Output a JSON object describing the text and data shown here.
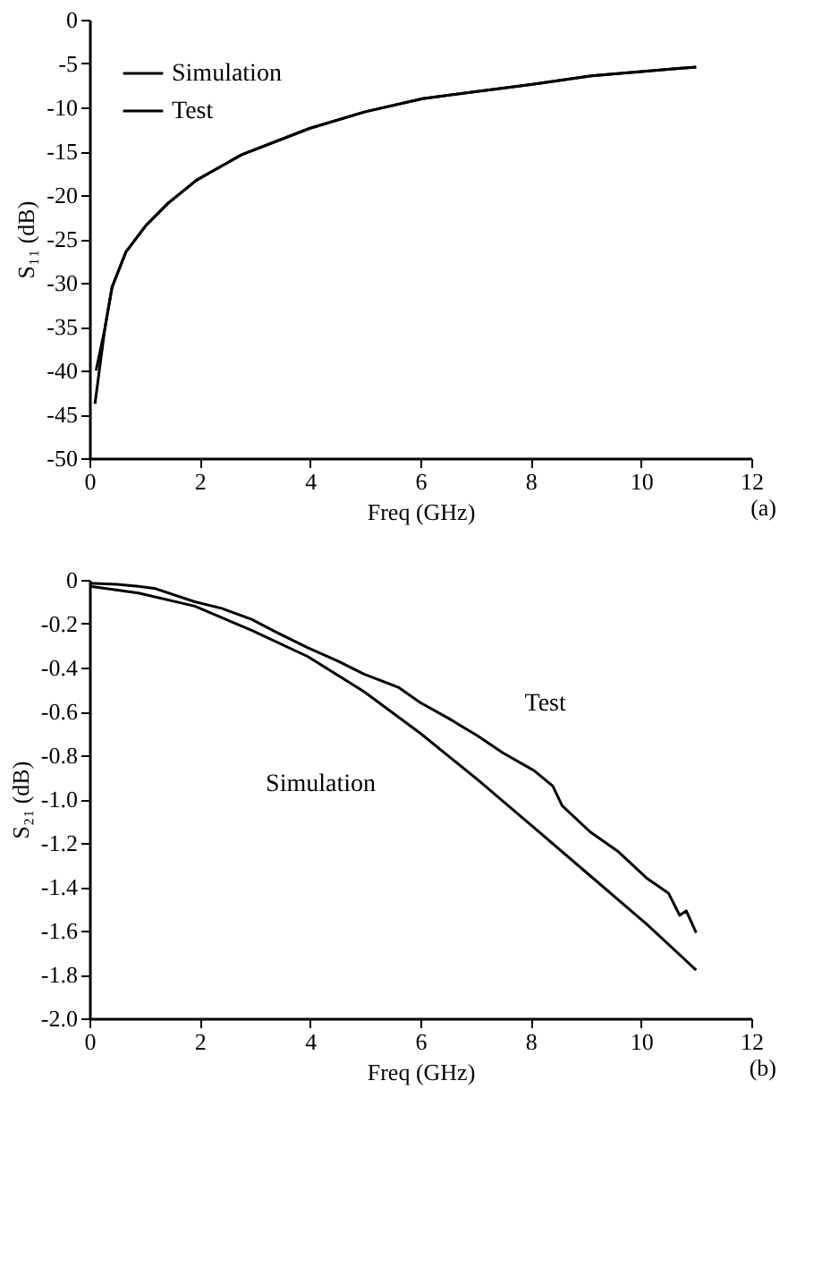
{
  "chart_data": [
    {
      "type": "line",
      "xlabel": "Freq (GHz)",
      "ylabel": "S₁₁ (dB)",
      "xlim": [
        0,
        12
      ],
      "ylim": [
        -50,
        0
      ],
      "xticks": [
        0,
        2,
        4,
        6,
        8,
        10,
        12
      ],
      "yticks": [
        -50,
        -45,
        -40,
        -35,
        -30,
        -25,
        -20,
        -15,
        -10,
        -5,
        0
      ],
      "legend": "top left",
      "grid": false,
      "annotations": [
        "(a)"
      ],
      "series": [
        {
          "name": "Simulation",
          "color": "#000000",
          "x": [
            0.1,
            0.28,
            0.41,
            0.66,
            1.02,
            1.43,
            1.94,
            2.76,
            3.99,
            5.0,
            6.04,
            8.0,
            9.1,
            11.0
          ],
          "values": [
            -43.8,
            -35.2,
            -30.5,
            -26.5,
            -23.5,
            -20.9,
            -18.3,
            -15.4,
            -12.4,
            -10.5,
            -9.0,
            -7.4,
            -6.4,
            -5.4
          ]
        },
        {
          "name": "Test",
          "color": "#000000",
          "x": [
            0.12,
            0.28,
            0.41,
            0.66,
            1.02,
            1.43,
            1.94,
            2.76,
            3.99,
            5.0,
            6.04,
            8.0,
            9.1,
            11.0
          ],
          "values": [
            -40.0,
            -35.2,
            -30.5,
            -26.5,
            -23.5,
            -20.9,
            -18.3,
            -15.4,
            -12.4,
            -10.5,
            -9.0,
            -7.4,
            -6.4,
            -5.4
          ]
        }
      ]
    },
    {
      "type": "line",
      "xlabel": "Freq (GHz)",
      "ylabel": "S₂₁ (dB)",
      "xlim": [
        0,
        12
      ],
      "ylim": [
        -2.0,
        0
      ],
      "xticks": [
        0,
        2,
        4,
        6,
        8,
        10,
        12
      ],
      "yticks": [
        {
          "value": -2.0,
          "label": "-2.0"
        },
        -1.8,
        -1.6,
        -1.4,
        -1.2,
        {
          "value": -1.0,
          "label": "-1.0"
        },
        -0.8,
        -0.6,
        -0.4,
        -0.2,
        0
      ],
      "legend": false,
      "grid": false,
      "annotations": [
        "(b)"
      ],
      "series": [
        {
          "name": "Simulation",
          "color": "#000000",
          "x": [
            0.02,
            0.89,
            1.91,
            2.94,
            3.96,
            4.98,
            6.0,
            7.03,
            8.06,
            9.08,
            10.1,
            11.0
          ],
          "values": [
            -0.03,
            -0.06,
            -0.12,
            -0.23,
            -0.35,
            -0.51,
            -0.7,
            -0.91,
            -1.13,
            -1.35,
            -1.57,
            -1.78
          ]
        },
        {
          "name": "Test",
          "color": "#000000",
          "x": [
            0.0,
            0.5,
            0.89,
            1.2,
            1.91,
            2.4,
            2.94,
            3.4,
            3.96,
            4.5,
            4.98,
            5.6,
            6.0,
            6.5,
            7.03,
            7.5,
            8.06,
            8.4,
            8.57,
            9.08,
            9.59,
            10.1,
            10.5,
            10.7,
            10.82,
            11.0
          ],
          "values": [
            -0.015,
            -0.02,
            -0.03,
            -0.04,
            -0.1,
            -0.13,
            -0.18,
            -0.24,
            -0.31,
            -0.37,
            -0.43,
            -0.49,
            -0.56,
            -0.63,
            -0.71,
            -0.79,
            -0.87,
            -0.94,
            -1.03,
            -1.15,
            -1.24,
            -1.36,
            -1.43,
            -1.53,
            -1.51,
            -1.61
          ]
        }
      ]
    }
  ]
}
